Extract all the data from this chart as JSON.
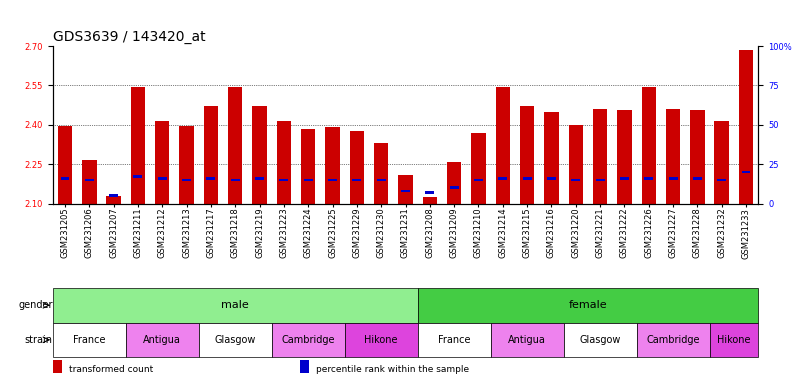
{
  "title": "GDS3639 / 143420_at",
  "samples": [
    "GSM231205",
    "GSM231206",
    "GSM231207",
    "GSM231211",
    "GSM231212",
    "GSM231213",
    "GSM231217",
    "GSM231218",
    "GSM231219",
    "GSM231223",
    "GSM231224",
    "GSM231225",
    "GSM231229",
    "GSM231230",
    "GSM231231",
    "GSM231208",
    "GSM231209",
    "GSM231210",
    "GSM231214",
    "GSM231215",
    "GSM231216",
    "GSM231220",
    "GSM231221",
    "GSM231222",
    "GSM231226",
    "GSM231227",
    "GSM231228",
    "GSM231232",
    "GSM231233"
  ],
  "red_values": [
    2.395,
    2.265,
    2.13,
    2.545,
    2.415,
    2.395,
    2.47,
    2.545,
    2.47,
    2.415,
    2.385,
    2.39,
    2.375,
    2.33,
    2.21,
    2.125,
    2.26,
    2.37,
    2.545,
    2.47,
    2.45,
    2.4,
    2.46,
    2.455,
    2.545,
    2.46,
    2.455,
    2.415,
    2.685
  ],
  "blue_values": [
    16,
    15,
    5,
    17,
    16,
    15,
    16,
    15,
    16,
    15,
    15,
    15,
    15,
    15,
    8,
    7,
    10,
    15,
    16,
    16,
    16,
    15,
    15,
    16,
    16,
    16,
    16,
    15,
    20
  ],
  "ylim_left": [
    2.1,
    2.7
  ],
  "ylim_right": [
    0,
    100
  ],
  "yticks_left": [
    2.1,
    2.25,
    2.4,
    2.55,
    2.7
  ],
  "yticks_right": [
    0,
    25,
    50,
    75,
    100
  ],
  "grid_values": [
    2.25,
    2.4,
    2.55
  ],
  "bar_color": "#cc0000",
  "blue_color": "#0000cc",
  "gender_groups": [
    {
      "label": "male",
      "start": 0,
      "end": 14,
      "color": "#90ee90"
    },
    {
      "label": "female",
      "start": 15,
      "end": 28,
      "color": "#44cc44"
    }
  ],
  "strain_groups": [
    {
      "label": "France",
      "start": 0,
      "end": 2,
      "color": "#ffffff"
    },
    {
      "label": "Antigua",
      "start": 3,
      "end": 5,
      "color": "#ee82ee"
    },
    {
      "label": "Glasgow",
      "start": 6,
      "end": 8,
      "color": "#ffffff"
    },
    {
      "label": "Cambridge",
      "start": 9,
      "end": 11,
      "color": "#ee82ee"
    },
    {
      "label": "Hikone",
      "start": 12,
      "end": 14,
      "color": "#dd44dd"
    },
    {
      "label": "France",
      "start": 15,
      "end": 17,
      "color": "#ffffff"
    },
    {
      "label": "Antigua",
      "start": 18,
      "end": 20,
      "color": "#ee82ee"
    },
    {
      "label": "Glasgow",
      "start": 21,
      "end": 23,
      "color": "#ffffff"
    },
    {
      "label": "Cambridge",
      "start": 24,
      "end": 26,
      "color": "#ee82ee"
    },
    {
      "label": "Hikone",
      "start": 27,
      "end": 28,
      "color": "#dd44dd"
    }
  ],
  "legend_items": [
    {
      "label": "transformed count",
      "color": "#cc0000"
    },
    {
      "label": "percentile rank within the sample",
      "color": "#0000cc"
    }
  ],
  "bar_width": 0.6,
  "title_fontsize": 10,
  "tick_fontsize": 6,
  "label_fontsize": 8,
  "panel_label_fontsize": 7
}
